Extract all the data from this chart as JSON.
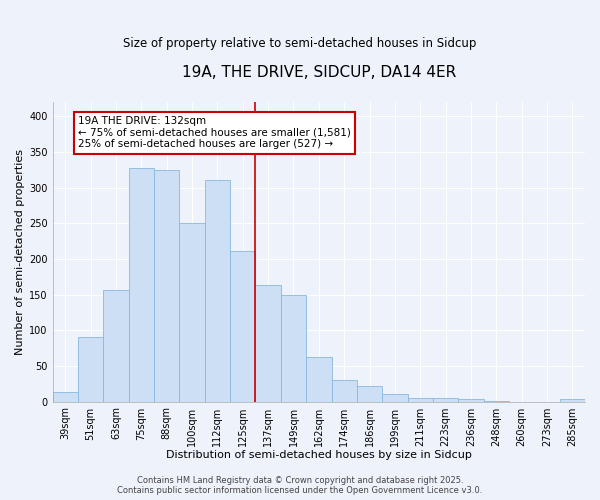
{
  "title": "19A, THE DRIVE, SIDCUP, DA14 4ER",
  "subtitle": "Size of property relative to semi-detached houses in Sidcup",
  "xlabel": "Distribution of semi-detached houses by size in Sidcup",
  "ylabel": "Number of semi-detached properties",
  "categories": [
    "39sqm",
    "51sqm",
    "63sqm",
    "75sqm",
    "88sqm",
    "100sqm",
    "112sqm",
    "125sqm",
    "137sqm",
    "149sqm",
    "162sqm",
    "174sqm",
    "186sqm",
    "199sqm",
    "211sqm",
    "223sqm",
    "236sqm",
    "248sqm",
    "260sqm",
    "273sqm",
    "285sqm"
  ],
  "values": [
    14,
    91,
    156,
    328,
    325,
    250,
    311,
    211,
    163,
    150,
    63,
    30,
    22,
    10,
    5,
    5,
    3,
    1,
    0,
    0,
    3
  ],
  "bar_color": "#ccdff5",
  "bar_edge_color": "#88b8e0",
  "background_color": "#eef2fa",
  "grid_color": "#ffffff",
  "vline_color": "#cc0000",
  "annotation_text": "19A THE DRIVE: 132sqm\n← 75% of semi-detached houses are smaller (1,581)\n25% of semi-detached houses are larger (527) →",
  "annotation_box_color": "#ffffff",
  "annotation_box_edge": "#cc0000",
  "ylim": [
    0,
    420
  ],
  "yticks": [
    0,
    50,
    100,
    150,
    200,
    250,
    300,
    350,
    400
  ],
  "footer": "Contains HM Land Registry data © Crown copyright and database right 2025.\nContains public sector information licensed under the Open Government Licence v3.0.",
  "title_fontsize": 11,
  "subtitle_fontsize": 8.5,
  "xlabel_fontsize": 8,
  "ylabel_fontsize": 8,
  "tick_fontsize": 7,
  "annotation_fontsize": 7.5,
  "footer_fontsize": 6
}
